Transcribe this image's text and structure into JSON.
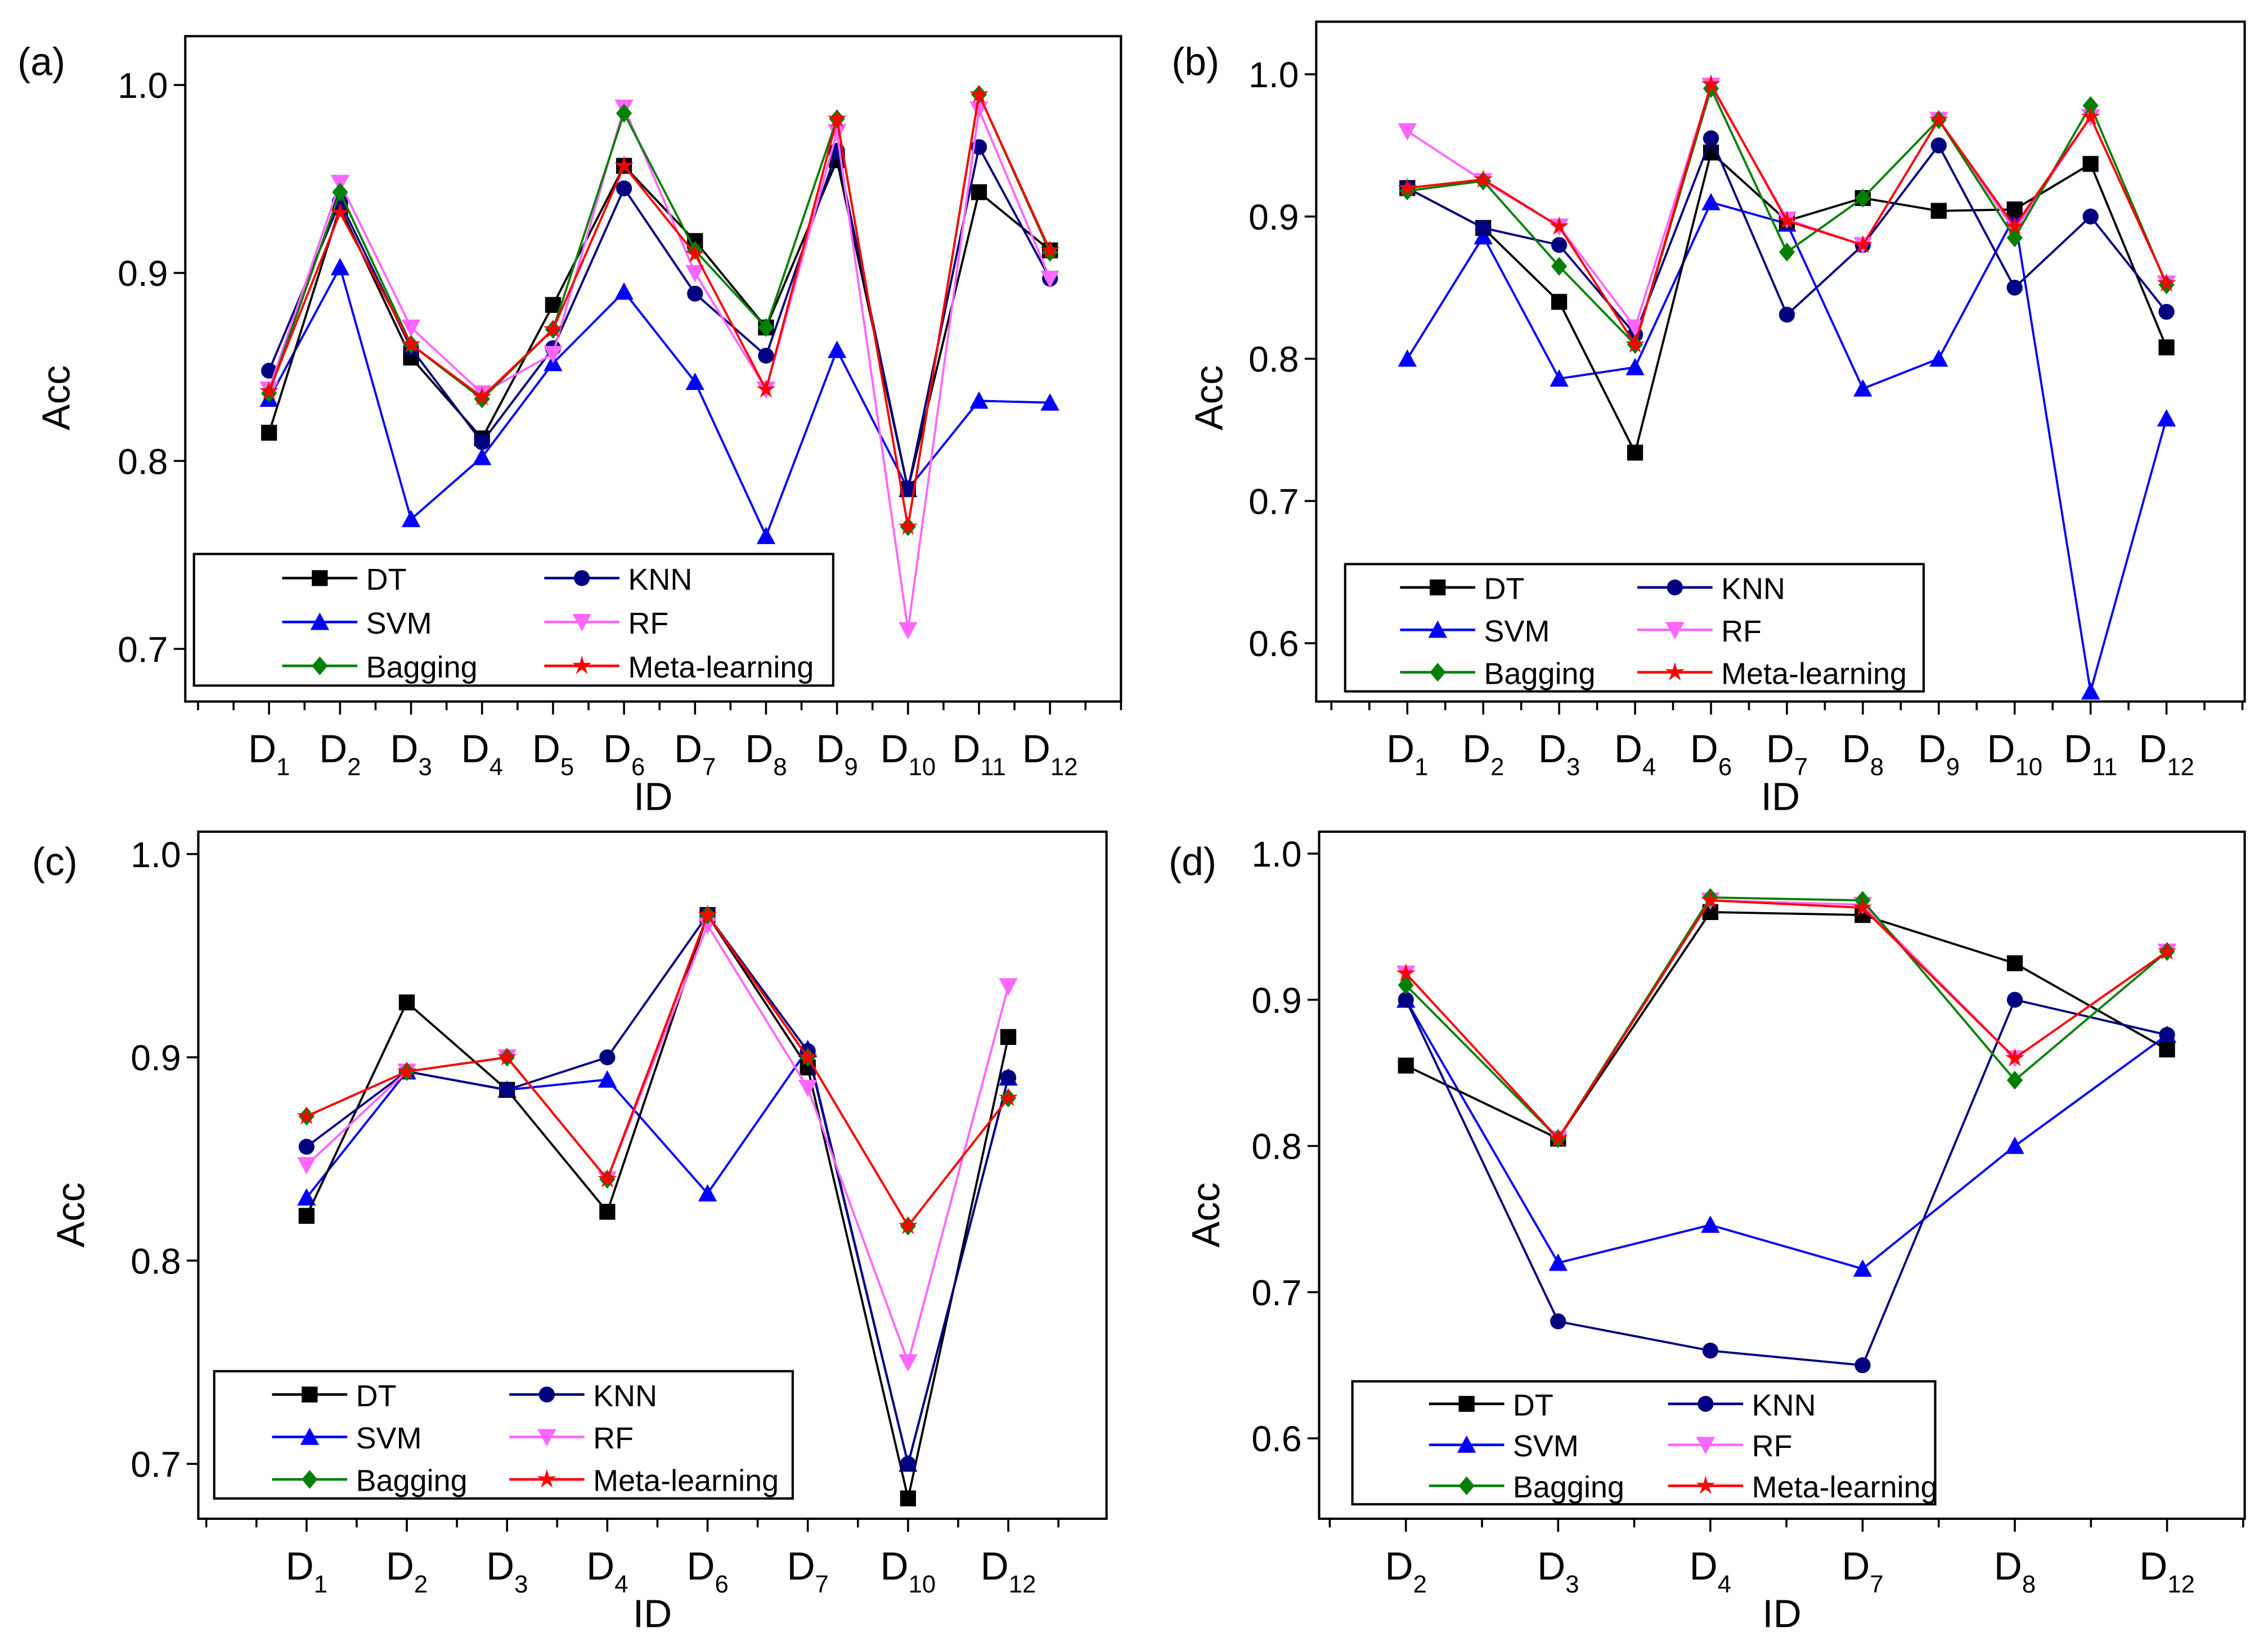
{
  "chart_data": [
    {
      "type": "line",
      "panel_label": "(a)",
      "xlabel": "ID",
      "ylabel": "Acc",
      "ylim": [
        0.672,
        1.026
      ],
      "yticks": [
        0.7,
        0.8,
        0.9,
        1.0
      ],
      "categories": [
        "D1",
        "D2",
        "D3",
        "D4",
        "D5",
        "D6",
        "D7",
        "D8",
        "D9",
        "D10",
        "D11",
        "D12"
      ],
      "legend_position": "bottom-left",
      "series": [
        {
          "name": "SVM",
          "color": "#0000ff",
          "marker": "triangle-up",
          "values": [
            0.833,
            0.903,
            0.769,
            0.802,
            0.852,
            0.89,
            0.842,
            0.76,
            0.859,
            0.785,
            0.832,
            0.831
          ]
        },
        {
          "name": "DT",
          "color": "#000000",
          "marker": "square",
          "values": [
            0.815,
            0.935,
            0.855,
            0.812,
            0.883,
            0.957,
            0.917,
            0.871,
            0.96,
            0.785,
            0.943,
            0.912
          ]
        },
        {
          "name": "KNN",
          "color": "#000080",
          "marker": "circle",
          "values": [
            0.848,
            0.938,
            0.86,
            0.81,
            0.86,
            0.945,
            0.889,
            0.856,
            0.965,
            0.785,
            0.967,
            0.897
          ]
        },
        {
          "name": "RF",
          "color": "#ff66ff",
          "marker": "triangle-down",
          "values": [
            0.838,
            0.948,
            0.871,
            0.836,
            0.857,
            0.988,
            0.9,
            0.838,
            0.975,
            0.71,
            0.987,
            0.897
          ]
        },
        {
          "name": "Bagging",
          "color": "#008000",
          "marker": "diamond",
          "values": [
            0.836,
            0.943,
            0.862,
            0.833,
            0.87,
            0.985,
            0.912,
            0.871,
            0.982,
            0.765,
            0.995,
            0.911
          ]
        },
        {
          "name": "Meta-learning",
          "color": "#ff0000",
          "marker": "star",
          "values": [
            0.837,
            0.932,
            0.862,
            0.834,
            0.87,
            0.957,
            0.91,
            0.838,
            0.982,
            0.765,
            0.995,
            0.912
          ]
        }
      ]
    },
    {
      "type": "line",
      "panel_label": "(b)",
      "xlabel": "ID",
      "ylabel": "Acc",
      "ylim": [
        0.559,
        1.037
      ],
      "yticks": [
        0.6,
        0.7,
        0.8,
        0.9,
        1.0
      ],
      "categories": [
        "D1",
        "D2",
        "D3",
        "D4",
        "D6",
        "D7",
        "D8",
        "D9",
        "D10",
        "D11",
        "D12"
      ],
      "legend_position": "bottom-left",
      "series": [
        {
          "name": "SVM",
          "color": "#0000ff",
          "marker": "triangle-up",
          "values": [
            0.8,
            0.886,
            0.786,
            0.794,
            0.91,
            0.895,
            0.779,
            0.8,
            0.9,
            0.566,
            0.758
          ]
        },
        {
          "name": "DT",
          "color": "#000000",
          "marker": "square",
          "values": [
            0.92,
            0.892,
            0.84,
            0.734,
            0.945,
            0.897,
            0.913,
            0.904,
            0.905,
            0.937,
            0.808
          ]
        },
        {
          "name": "KNN",
          "color": "#000080",
          "marker": "circle",
          "values": [
            0.92,
            0.892,
            0.88,
            0.817,
            0.955,
            0.831,
            0.88,
            0.95,
            0.85,
            0.9,
            0.833
          ]
        },
        {
          "name": "RF",
          "color": "#ff66ff",
          "marker": "triangle-down",
          "values": [
            0.96,
            0.925,
            0.893,
            0.822,
            0.992,
            0.898,
            0.88,
            0.968,
            0.89,
            0.97,
            0.853
          ]
        },
        {
          "name": "Bagging",
          "color": "#008000",
          "marker": "diamond",
          "values": [
            0.918,
            0.925,
            0.865,
            0.81,
            0.99,
            0.875,
            0.913,
            0.968,
            0.885,
            0.978,
            0.852
          ]
        },
        {
          "name": "Meta-learning",
          "color": "#ff0000",
          "marker": "star",
          "values": [
            0.92,
            0.926,
            0.893,
            0.81,
            0.993,
            0.897,
            0.88,
            0.968,
            0.893,
            0.97,
            0.853
          ]
        }
      ]
    },
    {
      "type": "line",
      "panel_label": "(c)",
      "xlabel": "ID",
      "ylabel": "Acc",
      "ylim": [
        0.673,
        1.011
      ],
      "yticks": [
        0.7,
        0.8,
        0.9,
        1.0
      ],
      "categories": [
        "D1",
        "D2",
        "D3",
        "D4",
        "D6",
        "D7",
        "D10",
        "D12"
      ],
      "legend_position": "bottom-left",
      "series": [
        {
          "name": "SVM",
          "color": "#0000ff",
          "marker": "triangle-up",
          "values": [
            0.831,
            0.893,
            0.884,
            0.889,
            0.833,
            0.904,
            0.7,
            0.89
          ]
        },
        {
          "name": "DT",
          "color": "#000000",
          "marker": "square",
          "values": [
            0.822,
            0.927,
            0.884,
            0.824,
            0.97,
            0.895,
            0.683,
            0.91
          ]
        },
        {
          "name": "KNN",
          "color": "#000080",
          "marker": "circle",
          "values": [
            0.856,
            0.893,
            0.884,
            0.9,
            0.97,
            0.903,
            0.7,
            0.89
          ]
        },
        {
          "name": "RF",
          "color": "#ff66ff",
          "marker": "triangle-down",
          "values": [
            0.847,
            0.893,
            0.9,
            0.84,
            0.965,
            0.885,
            0.75,
            0.935
          ]
        },
        {
          "name": "Bagging",
          "color": "#008000",
          "marker": "diamond",
          "values": [
            0.871,
            0.893,
            0.9,
            0.84,
            0.97,
            0.9,
            0.817,
            0.88
          ]
        },
        {
          "name": "Meta-learning",
          "color": "#ff0000",
          "marker": "star",
          "values": [
            0.871,
            0.893,
            0.9,
            0.84,
            0.97,
            0.9,
            0.817,
            0.88
          ]
        }
      ]
    },
    {
      "type": "line",
      "panel_label": "(d)",
      "xlabel": "ID",
      "ylabel": "Acc",
      "ylim": [
        0.545,
        1.015
      ],
      "yticks": [
        0.6,
        0.7,
        0.8,
        0.9,
        1.0
      ],
      "categories": [
        "D2",
        "D3",
        "D4",
        "D7",
        "D8",
        "D12"
      ],
      "legend_position": "bottom-left",
      "series": [
        {
          "name": "SVM",
          "color": "#0000ff",
          "marker": "triangle-up",
          "values": [
            0.9,
            0.72,
            0.746,
            0.716,
            0.8,
            0.876
          ]
        },
        {
          "name": "DT",
          "color": "#000000",
          "marker": "square",
          "values": [
            0.855,
            0.805,
            0.96,
            0.958,
            0.925,
            0.866
          ]
        },
        {
          "name": "KNN",
          "color": "#000080",
          "marker": "circle",
          "values": [
            0.9,
            0.68,
            0.66,
            0.65,
            0.9,
            0.876
          ]
        },
        {
          "name": "RF",
          "color": "#ff66ff",
          "marker": "triangle-down",
          "values": [
            0.918,
            0.805,
            0.968,
            0.965,
            0.86,
            0.933
          ]
        },
        {
          "name": "Bagging",
          "color": "#008000",
          "marker": "diamond",
          "values": [
            0.91,
            0.805,
            0.97,
            0.968,
            0.845,
            0.933
          ]
        },
        {
          "name": "Meta-learning",
          "color": "#ff0000",
          "marker": "star",
          "values": [
            0.918,
            0.805,
            0.968,
            0.963,
            0.86,
            0.933
          ]
        }
      ]
    }
  ]
}
